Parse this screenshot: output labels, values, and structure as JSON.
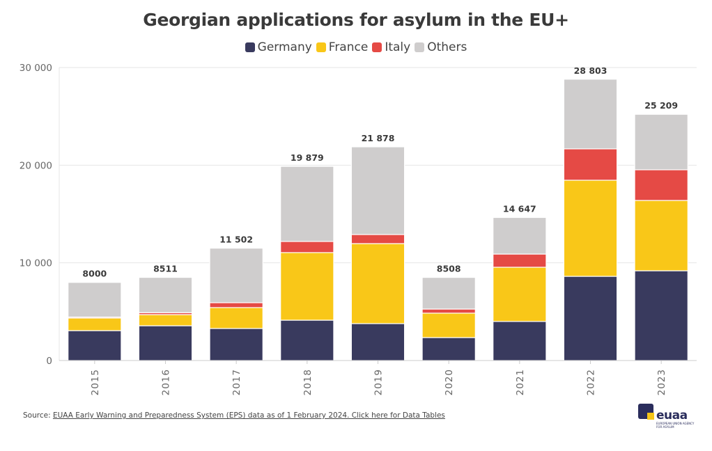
{
  "chart_data": {
    "type": "bar",
    "stacked": true,
    "title": "Georgian applications for asylum in the EU+",
    "xlabel": "",
    "ylabel": "",
    "ylim": [
      0,
      30000
    ],
    "yticks": [
      0,
      10000,
      20000,
      30000
    ],
    "ytick_labels": [
      "0",
      "10 000",
      "20 000",
      "30 000"
    ],
    "grid": true,
    "legend_position": "top-center",
    "categories": [
      "2015",
      "2016",
      "2017",
      "2018",
      "2019",
      "2020",
      "2021",
      "2022",
      "2023"
    ],
    "series": [
      {
        "name": "Germany",
        "color": "#393a5e",
        "values": [
          3060,
          3560,
          3280,
          4130,
          3780,
          2350,
          4000,
          8620,
          9190
        ]
      },
      {
        "name": "France",
        "color": "#f9c718",
        "values": [
          1290,
          1140,
          2140,
          6920,
          8190,
          2500,
          5550,
          9840,
          7200
        ]
      },
      {
        "name": "Italy",
        "color": "#e54a45",
        "values": [
          100,
          200,
          500,
          1140,
          930,
          420,
          1350,
          3210,
          3140
        ]
      },
      {
        "name": "Others",
        "color": "#cfcdcd",
        "values": [
          3550,
          3611,
          5582,
          7689,
          8978,
          3238,
          3747,
          7133,
          5679
        ]
      }
    ],
    "totals": [
      8000,
      8511,
      11502,
      19879,
      21878,
      8508,
      14647,
      28803,
      25209
    ],
    "total_labels": [
      "8000",
      "8511",
      "11 502",
      "19 879",
      "21 878",
      "8508",
      "14 647",
      "28 803",
      "25 209"
    ]
  },
  "source": {
    "prefix": "Source: ",
    "link_text": "EUAA Early Warning and Preparedness System (EPS) data as of 1 February 2024. Click here for Data Tables"
  },
  "logo": {
    "wordmark": "euaa",
    "subtitle": "EUROPEAN UNION AGENCY FOR ASYLUM"
  }
}
